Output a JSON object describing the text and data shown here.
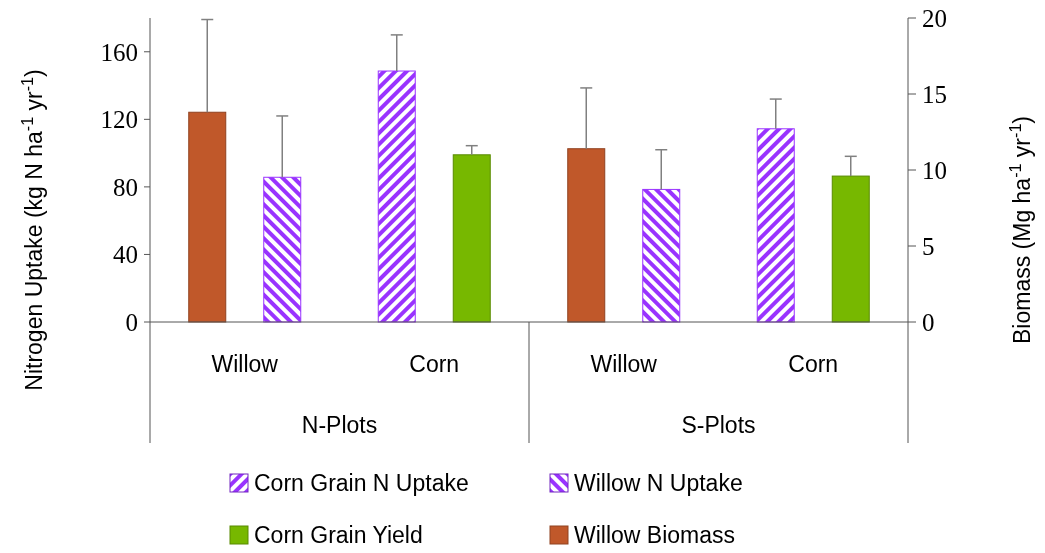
{
  "chart_data": {
    "type": "bar",
    "categories": [
      "Willow",
      "Corn",
      "Willow",
      "Corn"
    ],
    "annotations": [
      "N-Plots",
      "S-Plots"
    ],
    "ylabel": "Nitrogen Uptake (kg N ha$^{-1}$ yr$^{-1}$)",
    "y2label": "Biomass (Mg ha$^{-1}$ yr$^{-1}$)",
    "ylim": [
      0,
      180
    ],
    "yticks": [
      0,
      40,
      80,
      120,
      160
    ],
    "y2lim": [
      0,
      20
    ],
    "y2ticks": [
      0,
      5,
      10,
      15,
      20
    ],
    "series": [
      {
        "name": "Willow Biomass",
        "color": "#c0582a",
        "axis": "y2",
        "values": [
          13.8,
          null,
          11.4,
          null
        ],
        "errors": [
          [
            13.8,
            19.9
          ],
          null,
          [
            11.4,
            15.4
          ],
          null
        ]
      },
      {
        "name": "Corn Grain N Uptake",
        "color": "#9933ff",
        "values": [
          null,
          148.6,
          null,
          114.4
        ],
        "errors": [
          null,
          [
            148.6,
            170
          ],
          null,
          [
            114.4,
            132
          ]
        ]
      },
      {
        "name": "Willow N Uptake",
        "color": "#9933ff",
        "values": [
          85.7,
          null,
          78.5,
          null
        ],
        "errors": [
          [
            85.7,
            122
          ],
          null,
          [
            78.5,
            102
          ],
          null
        ]
      },
      {
        "name": "Corn Grain Yield",
        "color": "#77b800",
        "axis": "y2",
        "values": [
          null,
          11.0,
          null,
          9.6
        ],
        "errors": [
          null,
          [
            11.0,
            11.6
          ],
          null,
          [
            9.6,
            10.9
          ]
        ]
      }
    ],
    "legend": "bottom",
    "grid": false
  }
}
